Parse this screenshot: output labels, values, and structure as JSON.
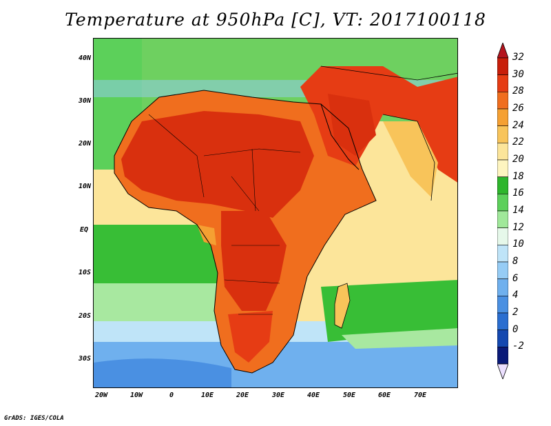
{
  "title": "Temperature at 950hPa [C], VT: 2017100118",
  "credit": "GrADS: IGES/COLA",
  "lat_labels": [
    "40N",
    "30N",
    "20N",
    "10N",
    "EQ",
    "10S",
    "20S",
    "30S"
  ],
  "lon_labels": [
    "20W",
    "10W",
    "0",
    "10E",
    "20E",
    "30E",
    "40E",
    "50E",
    "60E",
    "70E"
  ],
  "colorbar": {
    "levels": [
      "32",
      "30",
      "28",
      "26",
      "24",
      "22",
      "20",
      "18",
      "16",
      "14",
      "12",
      "10",
      "8",
      "6",
      "4",
      "2",
      "0",
      "-2"
    ],
    "colors": [
      "#c81e0a",
      "#e63c14",
      "#f06e1e",
      "#f5a032",
      "#f8c45a",
      "#fce59a",
      "#fef5c0",
      "#2eb62c",
      "#5cd05a",
      "#a0e89a",
      "#e6f8ea",
      "#bfe4f8",
      "#96ccf5",
      "#6fb0ee",
      "#4a90e2",
      "#2a6ed0",
      "#1448b0",
      "#0a1a78"
    ],
    "top_arrow_color": "#b4141e",
    "bottom_arrow_color": "#ece0ff"
  }
}
